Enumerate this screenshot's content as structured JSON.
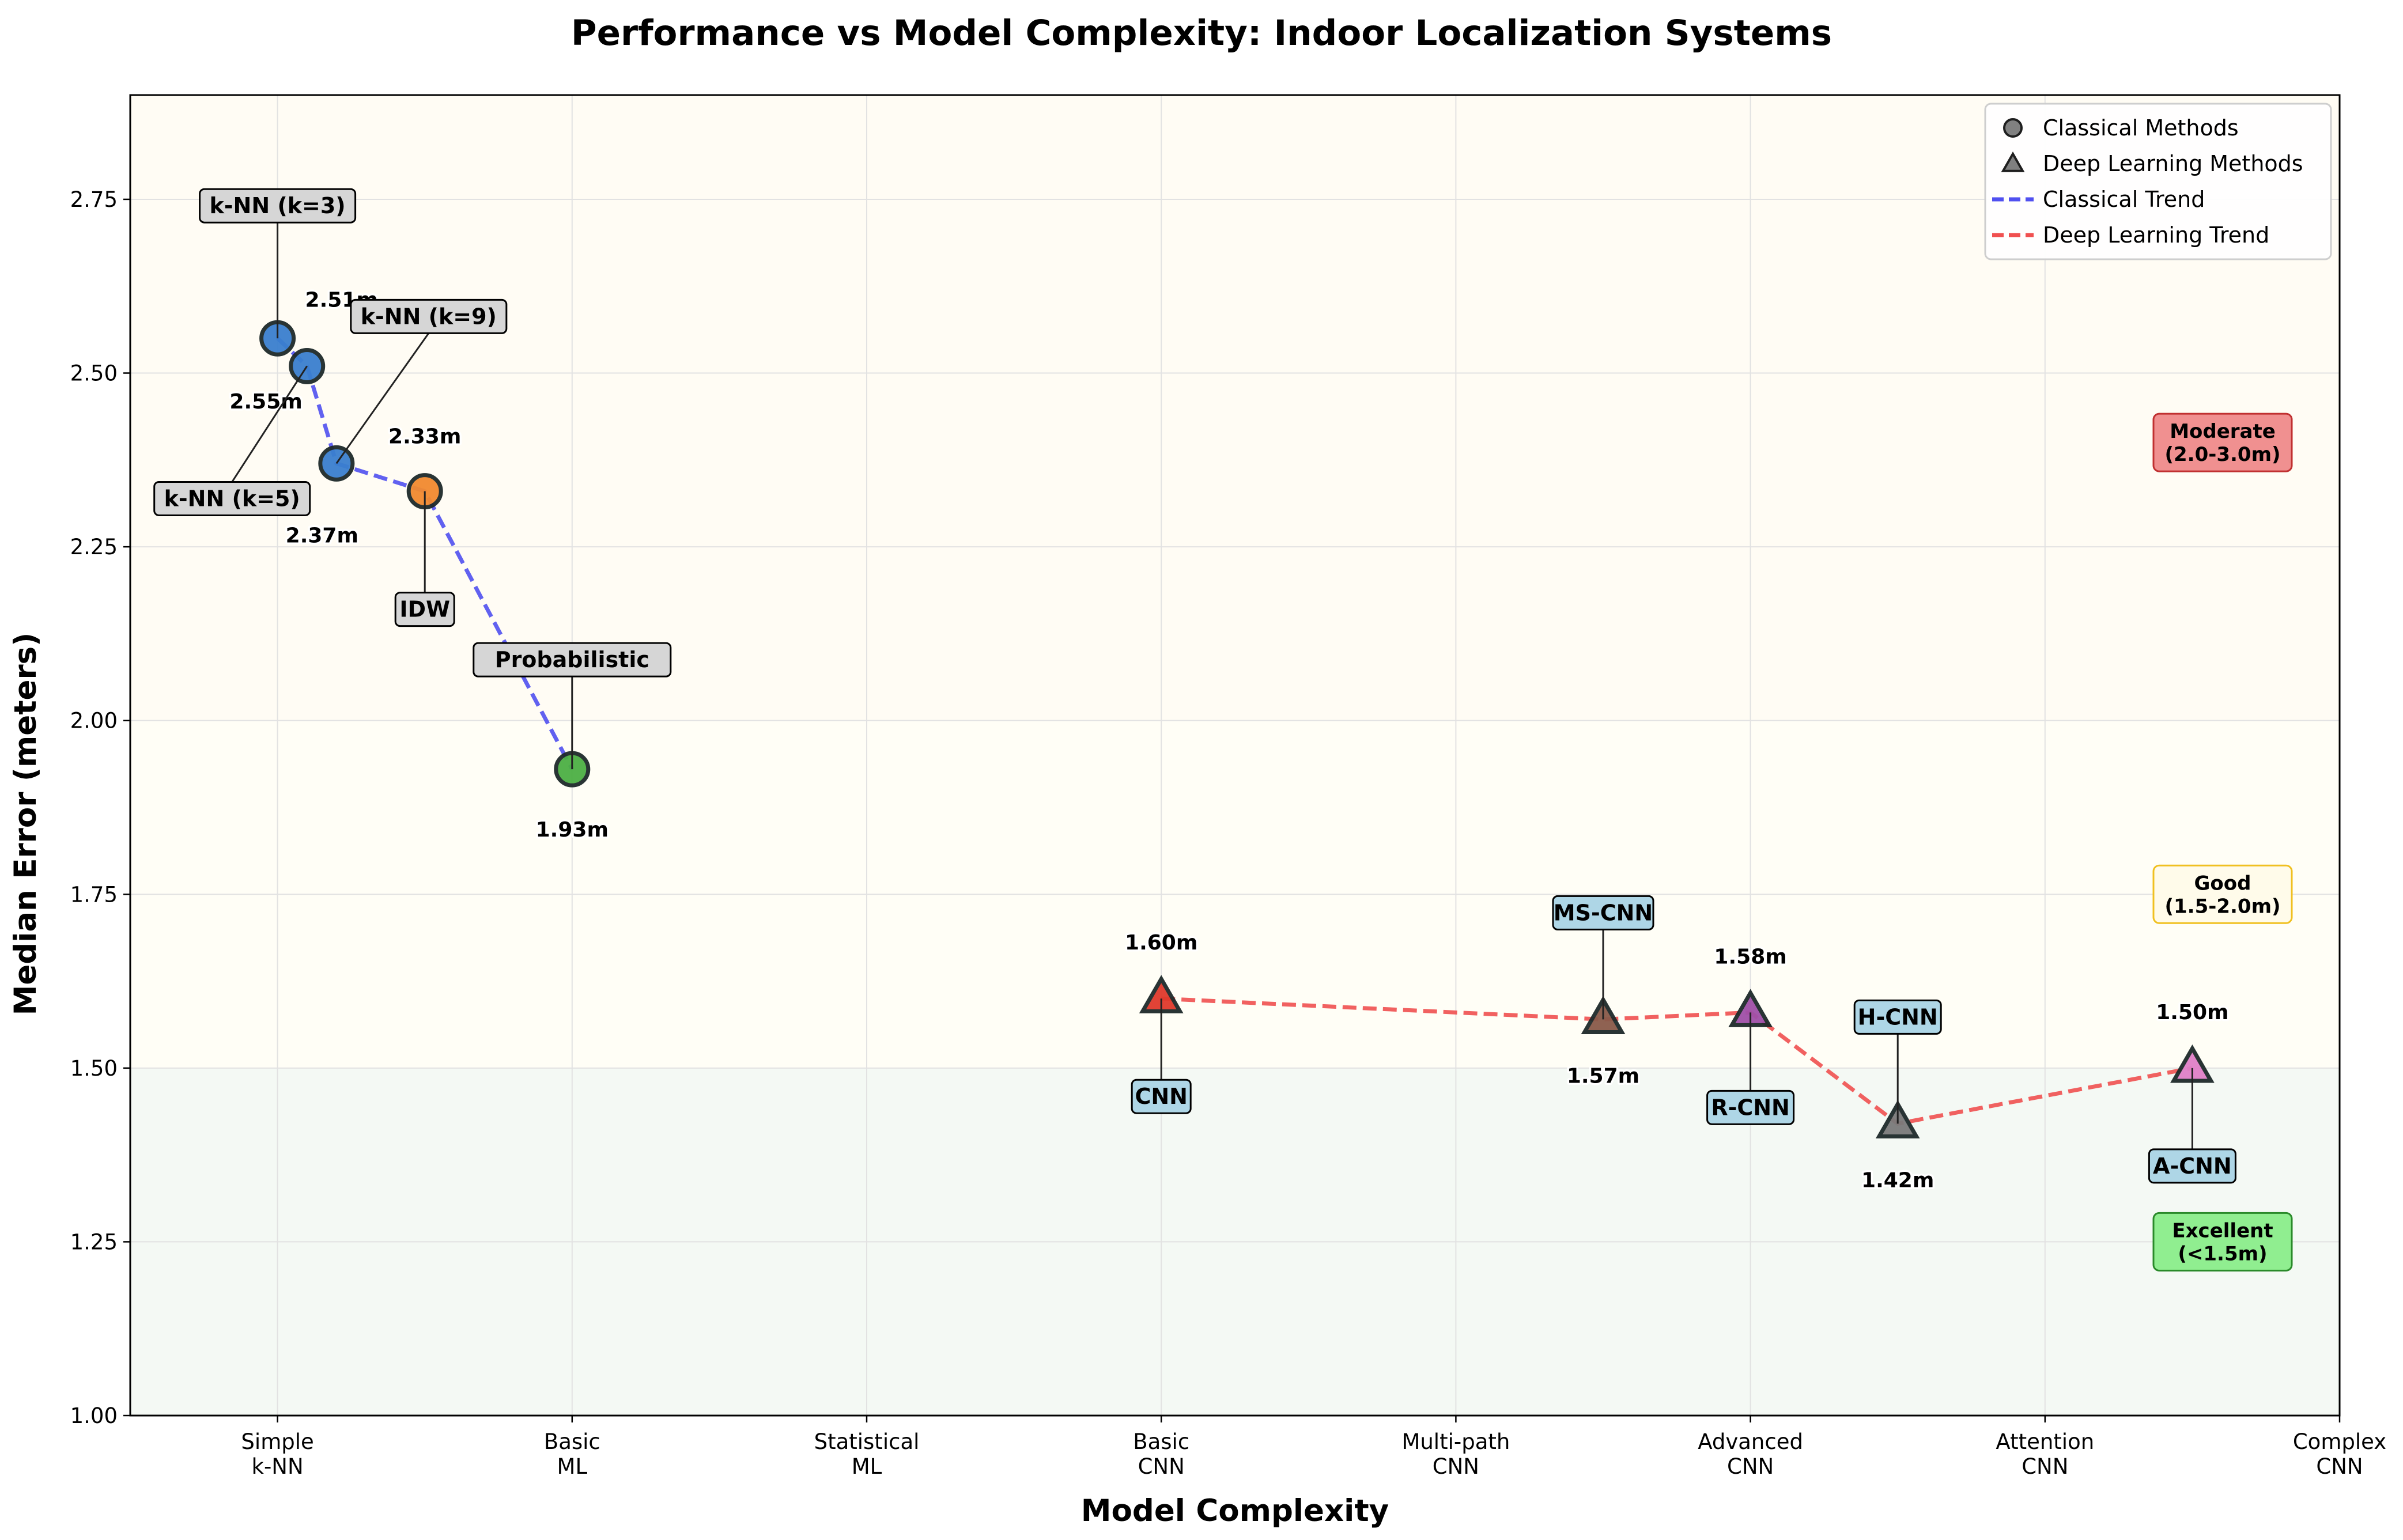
{
  "chart_data": {
    "type": "scatter",
    "title": "Performance vs Model Complexity: Indoor Localization Systems",
    "xlabel": "Model Complexity",
    "ylabel": "Median Error (meters)",
    "xlim": [
      -0.5,
      7
    ],
    "ylim": [
      1.0,
      2.9
    ],
    "grid": true,
    "legend_position": "top-right",
    "x_ticks": [
      {
        "value": 0,
        "label": [
          "Simple",
          "k-NN"
        ]
      },
      {
        "value": 1,
        "label": [
          "Basic",
          "ML"
        ]
      },
      {
        "value": 2,
        "label": [
          "Statistical",
          "ML"
        ]
      },
      {
        "value": 3,
        "label": [
          "Basic",
          "CNN"
        ]
      },
      {
        "value": 4,
        "label": [
          "Multi-path",
          "CNN"
        ]
      },
      {
        "value": 5,
        "label": [
          "Advanced",
          "CNN"
        ]
      },
      {
        "value": 6,
        "label": [
          "Attention",
          "CNN"
        ]
      },
      {
        "value": 7,
        "label": [
          "Complex",
          "CNN"
        ]
      }
    ],
    "y_ticks": [
      "1.00",
      "1.25",
      "1.50",
      "1.75",
      "2.00",
      "2.25",
      "2.50",
      "2.75"
    ],
    "legend": [
      {
        "label": "Classical Methods",
        "marker": "circle"
      },
      {
        "label": "Deep Learning Methods",
        "marker": "triangle"
      },
      {
        "label": "Classical Trend",
        "line_color": "#5050f0"
      },
      {
        "label": "Deep Learning Trend",
        "line_color": "#f05050"
      }
    ],
    "performance_zones": [
      {
        "label": [
          "Moderate",
          "(2.0-3.0m)"
        ],
        "from": 2.0,
        "to": 3.0,
        "band_color": "#fffcf4",
        "box_color": "#f09090",
        "border_color": "#c03030",
        "anchor_y": 2.4
      },
      {
        "label": [
          "Good",
          "(1.5-2.0m)"
        ],
        "from": 1.5,
        "to": 2.0,
        "band_color": "#fffef6",
        "box_color": "#fffbea",
        "border_color": "#f0c020",
        "anchor_y": 1.75
      },
      {
        "label": [
          "Excellent",
          "(<1.5m)"
        ],
        "from": 1.0,
        "to": 1.5,
        "band_color": "#f4f9f4",
        "box_color": "#90ee90",
        "border_color": "#2a8a2a",
        "anchor_y": 1.25
      }
    ],
    "series": [
      {
        "name": "Classical Methods",
        "marker": "circle",
        "trend_color": "#5050f0",
        "points": [
          {
            "label": "k-NN (k=3)",
            "x": 0.0,
            "y": 2.55,
            "value_text": "2.55m",
            "color": "#3a7fcf",
            "label_side": "above",
            "value_side": "below"
          },
          {
            "label": "k-NN (k=5)",
            "x": 0.1,
            "y": 2.51,
            "value_text": "2.51m",
            "color": "#3a7fcf",
            "label_side": "below",
            "value_side": "above"
          },
          {
            "label": "k-NN (k=9)",
            "x": 0.2,
            "y": 2.37,
            "value_text": "2.37m",
            "color": "#3a7fcf",
            "label_side": "above",
            "value_side": "below"
          },
          {
            "label": "IDW",
            "x": 0.5,
            "y": 2.33,
            "value_text": "2.33m",
            "color": "#f28a30",
            "label_side": "below",
            "value_side": "above"
          },
          {
            "label": "Probabilistic",
            "x": 1.0,
            "y": 1.93,
            "value_text": "1.93m",
            "color": "#4caf44",
            "label_side": "above",
            "value_side": "below"
          }
        ]
      },
      {
        "name": "Deep Learning Methods",
        "marker": "triangle",
        "trend_color": "#f05050",
        "points": [
          {
            "label": "CNN",
            "x": 3.0,
            "y": 1.6,
            "value_text": "1.60m",
            "color": "#e03a2c",
            "label_side": "below",
            "value_side": "above"
          },
          {
            "label": "MS-CNN",
            "x": 4.5,
            "y": 1.57,
            "value_text": "1.57m",
            "color": "#8a5a4a",
            "label_side": "above",
            "value_side": "below"
          },
          {
            "label": "R-CNN",
            "x": 5.0,
            "y": 1.58,
            "value_text": "1.58m",
            "color": "#a050a8",
            "label_side": "below",
            "value_side": "above"
          },
          {
            "label": "H-CNN",
            "x": 5.5,
            "y": 1.42,
            "value_text": "1.42m",
            "color": "#7a7a7a",
            "label_side": "above",
            "value_side": "below"
          },
          {
            "label": "A-CNN",
            "x": 6.5,
            "y": 1.5,
            "value_text": "1.50m",
            "color": "#e080c8",
            "label_side": "below",
            "value_side": "above"
          }
        ]
      }
    ]
  }
}
